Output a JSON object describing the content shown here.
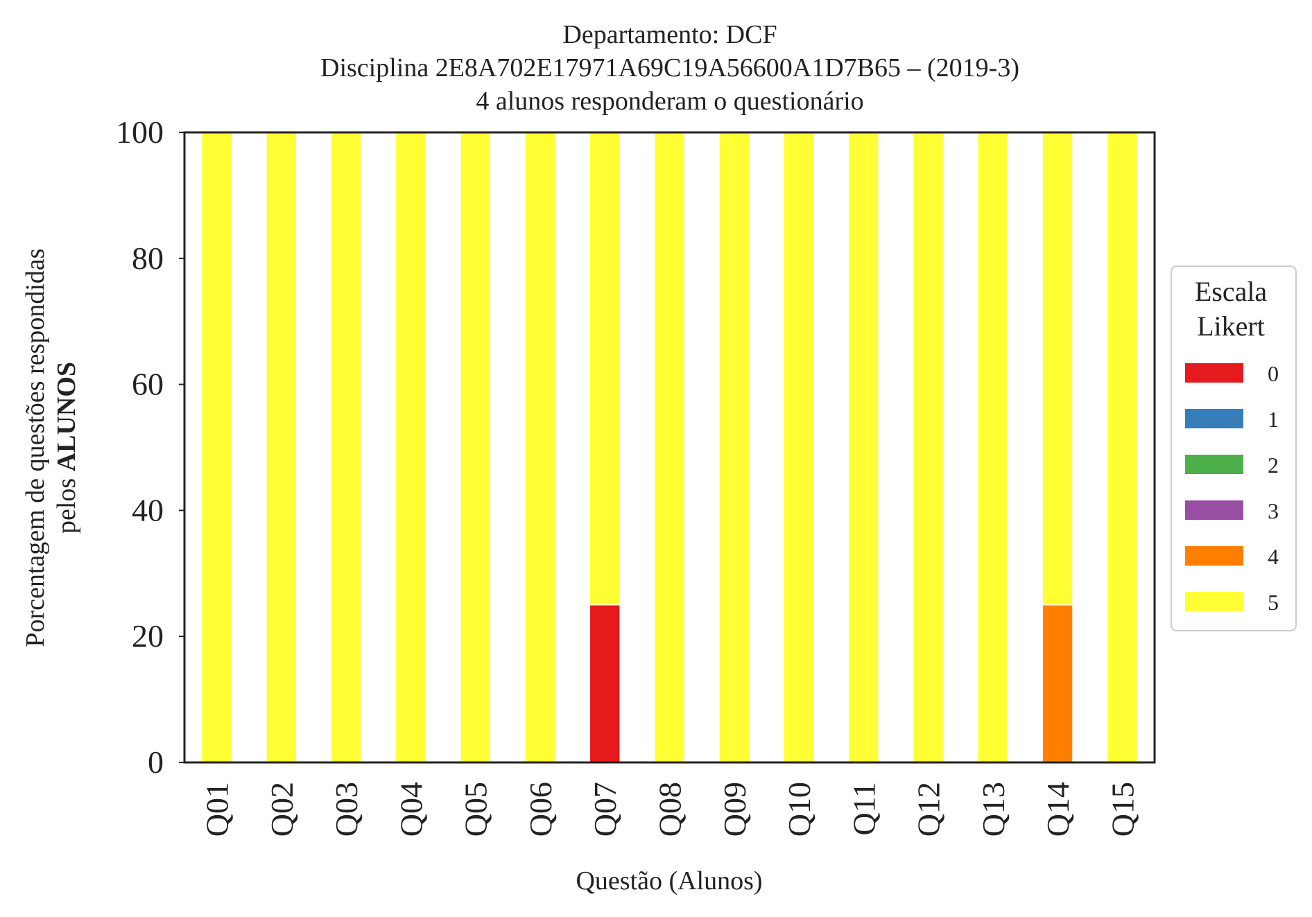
{
  "chart_data": {
    "type": "bar",
    "stacked": true,
    "title_lines": [
      "Departamento: DCF",
      "Disciplina 2E8A702E17971A69C19A56600A1D7B65 – (2019-3)",
      "4 alunos responderam o questionário"
    ],
    "xlabel": "Questão (Alunos)",
    "ylabel_line1": "Porcentagem de questões respondidas",
    "ylabel_line2_prefix": "pelos ",
    "ylabel_line2_bold": "ALUNOS",
    "ylim": [
      0,
      100
    ],
    "yticks": [
      0,
      20,
      40,
      60,
      80,
      100
    ],
    "grid": false,
    "categories": [
      "Q01",
      "Q02",
      "Q03",
      "Q04",
      "Q05",
      "Q06",
      "Q07",
      "Q08",
      "Q09",
      "Q10",
      "Q11",
      "Q12",
      "Q13",
      "Q14",
      "Q15"
    ],
    "legend": {
      "title_lines": [
        "Escala",
        "Likert"
      ],
      "placement": "right"
    },
    "series": [
      {
        "name": "0",
        "color": "#e41a1c",
        "values": [
          0,
          0,
          0,
          0,
          0,
          0,
          25,
          0,
          0,
          0,
          0,
          0,
          0,
          0,
          0
        ]
      },
      {
        "name": "1",
        "color": "#377eb8",
        "values": [
          0,
          0,
          0,
          0,
          0,
          0,
          0,
          0,
          0,
          0,
          0,
          0,
          0,
          0,
          0
        ]
      },
      {
        "name": "2",
        "color": "#4daf4a",
        "values": [
          0,
          0,
          0,
          0,
          0,
          0,
          0,
          0,
          0,
          0,
          0,
          0,
          0,
          0,
          0
        ]
      },
      {
        "name": "3",
        "color": "#984ea3",
        "values": [
          0,
          0,
          0,
          0,
          0,
          0,
          0,
          0,
          0,
          0,
          0,
          0,
          0,
          0,
          0
        ]
      },
      {
        "name": "4",
        "color": "#ff7f00",
        "values": [
          0,
          0,
          0,
          0,
          0,
          0,
          0,
          0,
          0,
          0,
          0,
          0,
          0,
          25,
          0
        ]
      },
      {
        "name": "5",
        "color": "#ffff33",
        "values": [
          100,
          100,
          100,
          100,
          100,
          100,
          75,
          100,
          100,
          100,
          100,
          100,
          100,
          75,
          100
        ]
      }
    ]
  }
}
